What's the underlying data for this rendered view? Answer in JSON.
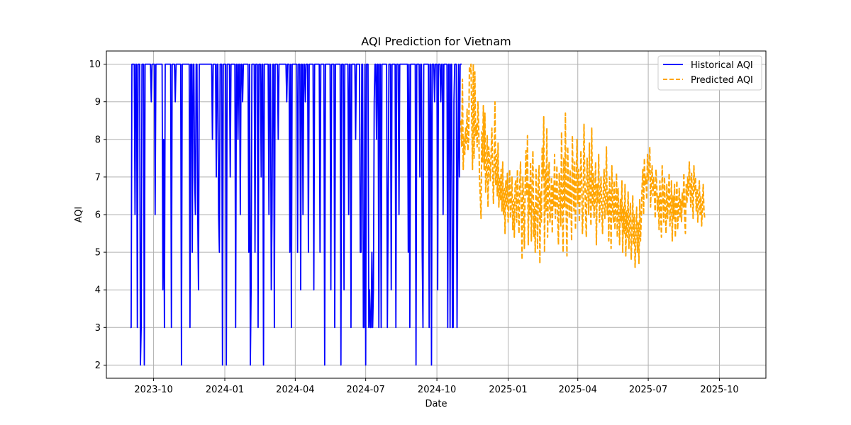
{
  "chart_data": {
    "type": "line",
    "title": "AQI Prediction for Vietnam",
    "xlabel": "Date",
    "ylabel": "AQI",
    "x_axis_kind": "date",
    "x_range": [
      "2023-08-01",
      "2025-11-30"
    ],
    "ylim": [
      1.65,
      10.35
    ],
    "y_ticks": [
      2,
      3,
      4,
      5,
      6,
      7,
      8,
      9,
      10
    ],
    "x_ticks": [
      {
        "date": "2023-10-01",
        "label": "2023-10"
      },
      {
        "date": "2024-01-01",
        "label": "2024-01"
      },
      {
        "date": "2024-04-01",
        "label": "2024-04"
      },
      {
        "date": "2024-07-01",
        "label": "2024-07"
      },
      {
        "date": "2024-10-01",
        "label": "2024-10"
      },
      {
        "date": "2025-01-01",
        "label": "2025-01"
      },
      {
        "date": "2025-04-01",
        "label": "2025-04"
      },
      {
        "date": "2025-07-01",
        "label": "2025-07"
      },
      {
        "date": "2025-10-01",
        "label": "2025-10"
      }
    ],
    "grid": true,
    "legend_position": "top-right",
    "series": [
      {
        "name": "Historical AQI",
        "color": "#0000ff",
        "line_style": "solid",
        "start_date": "2023-09-01",
        "step_days": 1,
        "values": [
          3,
          3,
          10,
          10,
          10,
          10,
          6,
          10,
          10,
          3,
          10,
          10,
          10,
          2,
          3,
          10,
          10,
          10,
          2,
          10,
          10,
          10,
          10,
          10,
          10,
          10,
          10,
          9,
          10,
          10,
          10,
          10,
          6,
          10,
          10,
          10,
          10,
          10,
          10,
          10,
          10,
          10,
          4,
          8,
          3,
          10,
          10,
          10,
          10,
          10,
          10,
          10,
          10,
          3,
          10,
          10,
          10,
          10,
          9,
          10,
          10,
          10,
          10,
          10,
          10,
          10,
          2,
          10,
          10,
          10,
          10,
          10,
          10,
          10,
          10,
          10,
          10,
          3,
          10,
          10,
          5,
          10,
          10,
          7,
          6,
          10,
          10,
          6,
          4,
          10,
          10,
          10,
          10,
          10,
          10,
          10,
          10,
          10,
          10,
          10,
          10,
          10,
          10,
          10,
          10,
          10,
          8,
          10,
          10,
          10,
          10,
          7,
          10,
          10,
          6,
          5,
          10,
          10,
          10,
          2,
          10,
          10,
          10,
          10,
          2,
          10,
          10,
          10,
          10,
          7,
          10,
          10,
          10,
          10,
          10,
          10,
          3,
          10,
          10,
          8,
          10,
          10,
          6,
          10,
          10,
          9,
          10,
          10,
          10,
          10,
          10,
          10,
          10,
          5,
          10,
          2,
          4,
          10,
          10,
          10,
          10,
          5,
          10,
          10,
          10,
          3,
          10,
          10,
          10,
          7,
          10,
          10,
          2,
          10,
          10,
          10,
          10,
          10,
          10,
          6,
          10,
          10,
          4,
          6,
          10,
          10,
          3,
          10,
          10,
          10,
          10,
          8,
          10,
          10,
          10,
          10,
          10,
          10,
          10,
          10,
          10,
          10,
          9,
          10,
          10,
          10,
          5,
          10,
          3,
          10,
          10,
          10,
          10,
          10,
          10,
          10,
          5,
          10,
          10,
          10,
          4,
          10,
          10,
          6,
          10,
          10,
          9,
          10,
          10,
          10,
          5,
          10,
          10,
          10,
          10,
          10,
          10,
          4,
          10,
          10,
          10,
          10,
          10,
          10,
          10,
          5,
          10,
          10,
          10,
          10,
          10,
          2,
          10,
          10,
          10,
          10,
          10,
          10,
          10,
          4,
          10,
          10,
          10,
          10,
          3,
          10,
          10,
          10,
          10,
          10,
          10,
          10,
          2,
          10,
          10,
          10,
          4,
          10,
          10,
          10,
          10,
          10,
          6,
          10,
          10,
          3,
          10,
          10,
          10,
          10,
          10,
          8,
          10,
          10,
          10,
          10,
          10,
          5,
          5,
          10,
          10,
          3,
          3,
          10,
          2,
          10,
          10,
          10,
          3,
          4,
          3,
          3,
          5,
          3,
          4,
          9,
          10,
          10,
          8,
          10,
          10,
          3,
          10,
          10,
          3,
          10,
          10,
          10,
          10,
          10,
          10,
          10,
          3,
          6,
          10,
          10,
          10,
          4,
          10,
          10,
          10,
          10,
          10,
          3,
          10,
          10,
          10,
          6,
          10,
          10,
          10,
          10,
          10,
          10,
          10,
          10,
          10,
          10,
          10,
          5,
          10,
          3,
          10,
          10,
          10,
          10,
          10,
          10,
          10,
          2,
          10,
          10,
          10,
          10,
          7,
          10,
          10,
          5,
          3,
          10,
          10,
          10,
          10,
          10,
          10,
          10,
          3,
          10,
          10,
          2,
          10,
          10,
          10,
          9,
          10,
          10,
          10,
          4,
          10,
          10,
          10,
          9,
          10,
          10,
          6,
          10,
          10,
          10,
          10,
          10,
          3,
          10,
          10,
          3,
          10,
          10,
          3,
          3,
          9,
          10,
          10,
          10,
          3,
          7,
          10,
          7,
          10,
          10,
          10
        ]
      },
      {
        "name": "Predicted AQI",
        "color": "#ffa500",
        "line_style": "dashed",
        "start_date": "2024-11-01",
        "step_days": 1,
        "values": [
          8.5,
          7.8,
          9.6,
          7.2,
          8.1,
          7.6,
          8.3,
          7.9,
          8.8,
          7.7,
          8.0,
          9.9,
          9.8,
          10.0,
          8.6,
          7.2,
          10.0,
          7.5,
          9.8,
          8.1,
          8.4,
          7.8,
          9.0,
          8.3,
          7.0,
          6.5,
          5.9,
          8.2,
          7.4,
          8.9,
          7.2,
          8.7,
          6.6,
          7.1,
          8.1,
          6.2,
          7.8,
          7.4,
          6.9,
          7.6,
          8.3,
          7.2,
          6.3,
          7.4,
          9.0,
          6.8,
          7.6,
          6.5,
          7.9,
          6.2,
          7.0,
          6.4,
          7.2,
          6.1,
          7.4,
          6.0,
          6.7,
          5.5,
          6.9,
          6.2,
          7.1,
          5.8,
          6.5,
          7.2,
          5.9,
          6.3,
          7.0,
          5.6,
          6.4,
          5.4,
          6.8,
          6.9,
          5.8,
          7.2,
          6.4,
          5.5,
          6.8,
          7.4,
          6.2,
          4.8,
          7.0,
          6.3,
          5.1,
          6.8,
          7.7,
          6.5,
          8.1,
          5.2,
          6.8,
          6.0,
          7.4,
          5.3,
          6.7,
          7.7,
          5.4,
          6.2,
          5.0,
          7.2,
          6.4,
          5.1,
          6.9,
          7.3,
          4.7,
          6.6,
          5.8,
          7.8,
          7.0,
          8.6,
          5.0,
          7.2,
          6.1,
          8.3,
          5.4,
          6.9,
          7.4,
          5.8,
          6.1,
          7.0,
          5.5,
          6.8,
          6.2,
          7.6,
          5.9,
          6.4,
          7.3,
          6.0,
          5.2,
          7.1,
          6.6,
          5.7,
          8.2,
          6.3,
          5.0,
          7.5,
          6.2,
          8.7,
          6.0,
          4.9,
          7.8,
          6.5,
          5.9,
          7.2,
          6.4,
          5.3,
          8.1,
          6.8,
          6.1,
          7.4,
          5.6,
          6.7,
          8.0,
          6.3,
          7.2,
          5.8,
          6.6,
          7.7,
          6.9,
          5.5,
          6.2,
          8.4,
          7.0,
          6.1,
          5.4,
          7.5,
          6.8,
          6.0,
          7.9,
          6.4,
          5.7,
          8.3,
          6.2,
          7.1,
          5.9,
          6.6,
          7.4,
          5.2,
          6.8,
          6.3,
          7.6,
          5.8,
          6.5,
          7.0,
          6.1,
          5.5,
          6.7,
          7.2,
          5.9,
          6.4,
          7.8,
          6.0,
          6.6,
          5.3,
          7.0,
          6.4,
          5.1,
          7.3,
          6.2,
          5.8,
          6.9,
          5.6,
          6.3,
          7.1,
          5.4,
          6.7,
          6.0,
          5.2,
          6.4,
          5.8,
          6.9,
          5.0,
          6.2,
          5.5,
          6.8,
          4.9,
          6.1,
          5.4,
          6.6,
          5.1,
          5.9,
          6.3,
          4.8,
          5.6,
          6.5,
          5.2,
          6.0,
          4.6,
          5.5,
          6.2,
          5.0,
          5.8,
          4.7,
          6.4,
          5.3,
          5.9,
          6.7,
          7.2,
          6.0,
          7.5,
          6.8,
          7.0,
          6.4,
          7.6,
          6.9,
          7.2,
          7.8,
          6.2,
          6.9,
          7.3,
          6.5,
          7.0,
          6.6,
          5.9,
          7.2,
          6.8,
          6.1,
          6.5,
          5.6,
          6.9,
          6.2,
          5.4,
          7.3,
          6.6,
          5.8,
          7.0,
          6.1,
          5.5,
          6.8,
          5.9,
          6.4,
          7.1,
          5.7,
          6.2,
          6.9,
          5.3,
          6.5,
          5.9,
          6.8,
          5.4,
          6.3,
          6.9,
          5.6,
          6.1,
          6.7,
          5.9,
          6.4,
          5.8,
          6.6,
          6.2,
          7.1,
          6.0,
          5.5,
          6.8,
          6.3,
          7.0,
          6.5,
          7.4,
          6.8,
          6.2,
          7.1,
          6.5,
          5.9,
          7.3,
          6.6,
          7.0,
          6.1,
          6.7,
          5.8,
          6.4,
          6.9,
          6.0,
          6.5,
          5.7,
          6.2,
          6.8,
          6.1,
          5.9
        ]
      }
    ]
  }
}
